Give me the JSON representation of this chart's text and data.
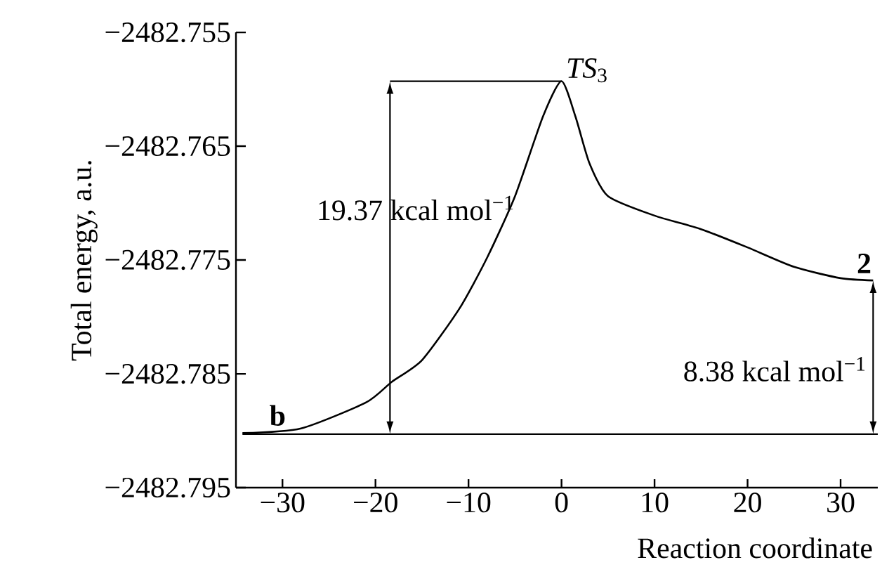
{
  "chart_data": {
    "type": "line",
    "xlabel": "Reaction coordinate",
    "ylabel": "Total energy, a.u.",
    "x": [
      -34.3,
      -28,
      -21,
      -18.25,
      -15,
      -11,
      -8,
      -5,
      -2,
      0,
      1.5,
      3,
      5,
      10,
      15,
      20,
      25,
      30,
      33.5
    ],
    "series": [
      {
        "color": "#000000",
        "values": [
          -2482.7902,
          -2482.7898,
          -2482.7875,
          -2482.7857,
          -2482.7838,
          -2482.7793,
          -2482.7748,
          -2482.7694,
          -2482.7624,
          -2482.7593,
          -2482.7624,
          -2482.7665,
          -2482.7694,
          -2482.7711,
          -2482.7723,
          -2482.7739,
          -2482.7756,
          -2482.7766,
          -2482.7768
        ]
      }
    ],
    "xlim": [
      -35,
      34
    ],
    "xticks": [
      {
        "value": -30,
        "label": "−30"
      },
      {
        "value": -20,
        "label": "−20"
      },
      {
        "value": -10,
        "label": "−10"
      },
      0,
      10,
      20,
      30
    ],
    "ylim": [
      -2482.795,
      -2482.755
    ],
    "yticks": [
      {
        "value": -2482.795,
        "label": "−2482.795"
      },
      {
        "value": -2482.785,
        "label": "−2482.785"
      },
      {
        "value": -2482.775,
        "label": "−2482.775"
      },
      {
        "value": -2482.765,
        "label": "−2482.765"
      },
      {
        "value": -2482.755,
        "label": "−2482.755"
      }
    ],
    "ref_lines": [
      {
        "axis": "y",
        "value": -2482.7903,
        "color": "#000000"
      }
    ],
    "annotations": [
      {
        "text": "*TS*$_{3}$",
        "x": 0,
        "y": -2482.7593
      },
      {
        "text": "2",
        "x": 33.5,
        "y": -2482.7768
      },
      {
        "text": "b",
        "x": -34.3,
        "y": -2482.7902
      },
      "19.37 kcal mol$^{−1}$",
      "8.38 kcal mol$^{−1}$"
    ],
    "grid": false,
    "legend": false,
    "marker": "none",
    "line_style": "solid"
  }
}
